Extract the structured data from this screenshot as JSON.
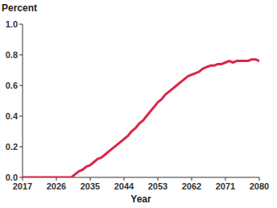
{
  "chart_data": {
    "type": "line",
    "y_label": "Percent",
    "x_label": "Year",
    "x": [
      2017,
      2018,
      2019,
      2020,
      2021,
      2022,
      2023,
      2024,
      2025,
      2026,
      2027,
      2028,
      2029,
      2030,
      2031,
      2032,
      2033,
      2034,
      2035,
      2036,
      2037,
      2038,
      2039,
      2040,
      2041,
      2042,
      2043,
      2044,
      2045,
      2046,
      2047,
      2048,
      2049,
      2050,
      2051,
      2052,
      2053,
      2054,
      2055,
      2056,
      2057,
      2058,
      2059,
      2060,
      2061,
      2062,
      2063,
      2064,
      2065,
      2066,
      2067,
      2068,
      2069,
      2070,
      2071,
      2072,
      2073,
      2074,
      2075,
      2076,
      2077,
      2078,
      2079,
      2080
    ],
    "values": [
      0,
      0,
      0,
      0,
      0,
      0,
      0,
      0,
      0,
      0,
      0,
      0,
      0,
      0,
      0.02,
      0.04,
      0.05,
      0.07,
      0.08,
      0.1,
      0.12,
      0.13,
      0.15,
      0.17,
      0.19,
      0.21,
      0.23,
      0.25,
      0.27,
      0.3,
      0.32,
      0.35,
      0.37,
      0.4,
      0.43,
      0.46,
      0.49,
      0.51,
      0.54,
      0.56,
      0.58,
      0.6,
      0.62,
      0.64,
      0.66,
      0.67,
      0.68,
      0.69,
      0.71,
      0.72,
      0.73,
      0.73,
      0.74,
      0.74,
      0.75,
      0.76,
      0.75,
      0.76,
      0.76,
      0.76,
      0.76,
      0.77,
      0.77,
      0.76
    ],
    "color": "#d9264a",
    "xlim": [
      2017,
      2080
    ],
    "xticks": [
      2017,
      2026,
      2035,
      2044,
      2053,
      2062,
      2071,
      2080
    ],
    "ylim": [
      0,
      1
    ],
    "yticks": [
      {
        "value": 0,
        "label": "0.0"
      },
      0.2,
      0.4,
      0.6,
      0.8,
      {
        "value": 1,
        "label": "1.0"
      }
    ],
    "grid": false
  }
}
